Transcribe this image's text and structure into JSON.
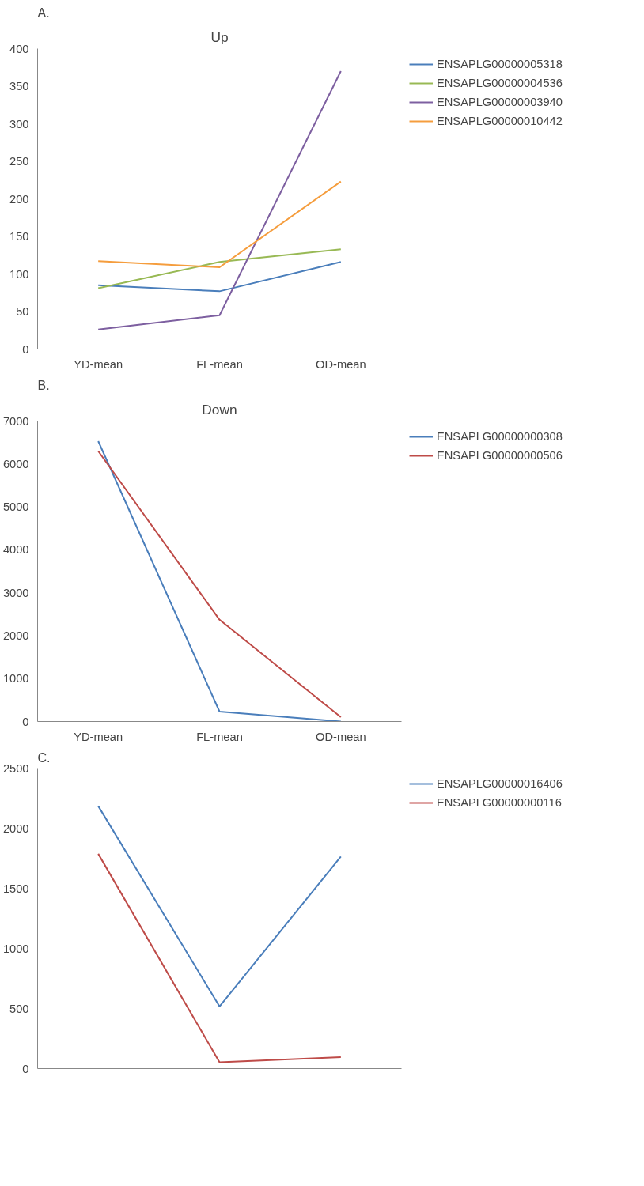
{
  "chart_data": [
    {
      "type": "line",
      "title": "Up",
      "annotations": [
        "A."
      ],
      "categories": [
        "YD-mean",
        "FL-mean",
        "OD-mean"
      ],
      "ylim": [
        0,
        400
      ],
      "yticks": [
        0,
        50,
        100,
        150,
        200,
        250,
        300,
        350,
        400
      ],
      "grid": false,
      "legend": "right",
      "marker": "none",
      "line_style": "solid",
      "series": [
        {
          "name": "ENSAPLG00000005318",
          "color": "#4a7ebb",
          "values": [
            85,
            77,
            116
          ]
        },
        {
          "name": "ENSAPLG00000004536",
          "color": "#98b954",
          "values": [
            81,
            116,
            133
          ]
        },
        {
          "name": "ENSAPLG00000003940",
          "color": "#7d5fa0",
          "values": [
            26,
            45,
            370
          ]
        },
        {
          "name": "ENSAPLG00000010442",
          "color": "#f59d3d",
          "values": [
            117,
            109,
            223
          ]
        }
      ]
    },
    {
      "type": "line",
      "title": "Down",
      "annotations": [
        "B."
      ],
      "categories": [
        "YD-mean",
        "FL-mean",
        "OD-mean"
      ],
      "ylim": [
        0,
        7000
      ],
      "yticks": [
        0,
        1000,
        2000,
        3000,
        4000,
        5000,
        6000,
        7000
      ],
      "grid": false,
      "legend": "right",
      "marker": "none",
      "line_style": "solid",
      "series": [
        {
          "name": "ENSAPLG00000000308",
          "color": "#4a7ebb",
          "values": [
            6530,
            230,
            0
          ]
        },
        {
          "name": "ENSAPLG00000000506",
          "color": "#be4b48",
          "values": [
            6300,
            2370,
            100
          ]
        }
      ]
    },
    {
      "type": "line",
      "annotations": [
        "C."
      ],
      "categories": [
        null,
        null,
        null
      ],
      "tick_labels": "y",
      "ylim": [
        0,
        2500
      ],
      "yticks": [
        0,
        500,
        1000,
        1500,
        2000,
        2500
      ],
      "grid": false,
      "legend": "right",
      "marker": "none",
      "line_style": "solid",
      "series": [
        {
          "name": "ENSAPLG00000016406",
          "color": "#4a7ebb",
          "values": [
            2185,
            517,
            1764
          ]
        },
        {
          "name": "ENSAPLG00000000116",
          "color": "#be4b48",
          "values": [
            1787,
            53,
            95
          ]
        }
      ]
    }
  ]
}
